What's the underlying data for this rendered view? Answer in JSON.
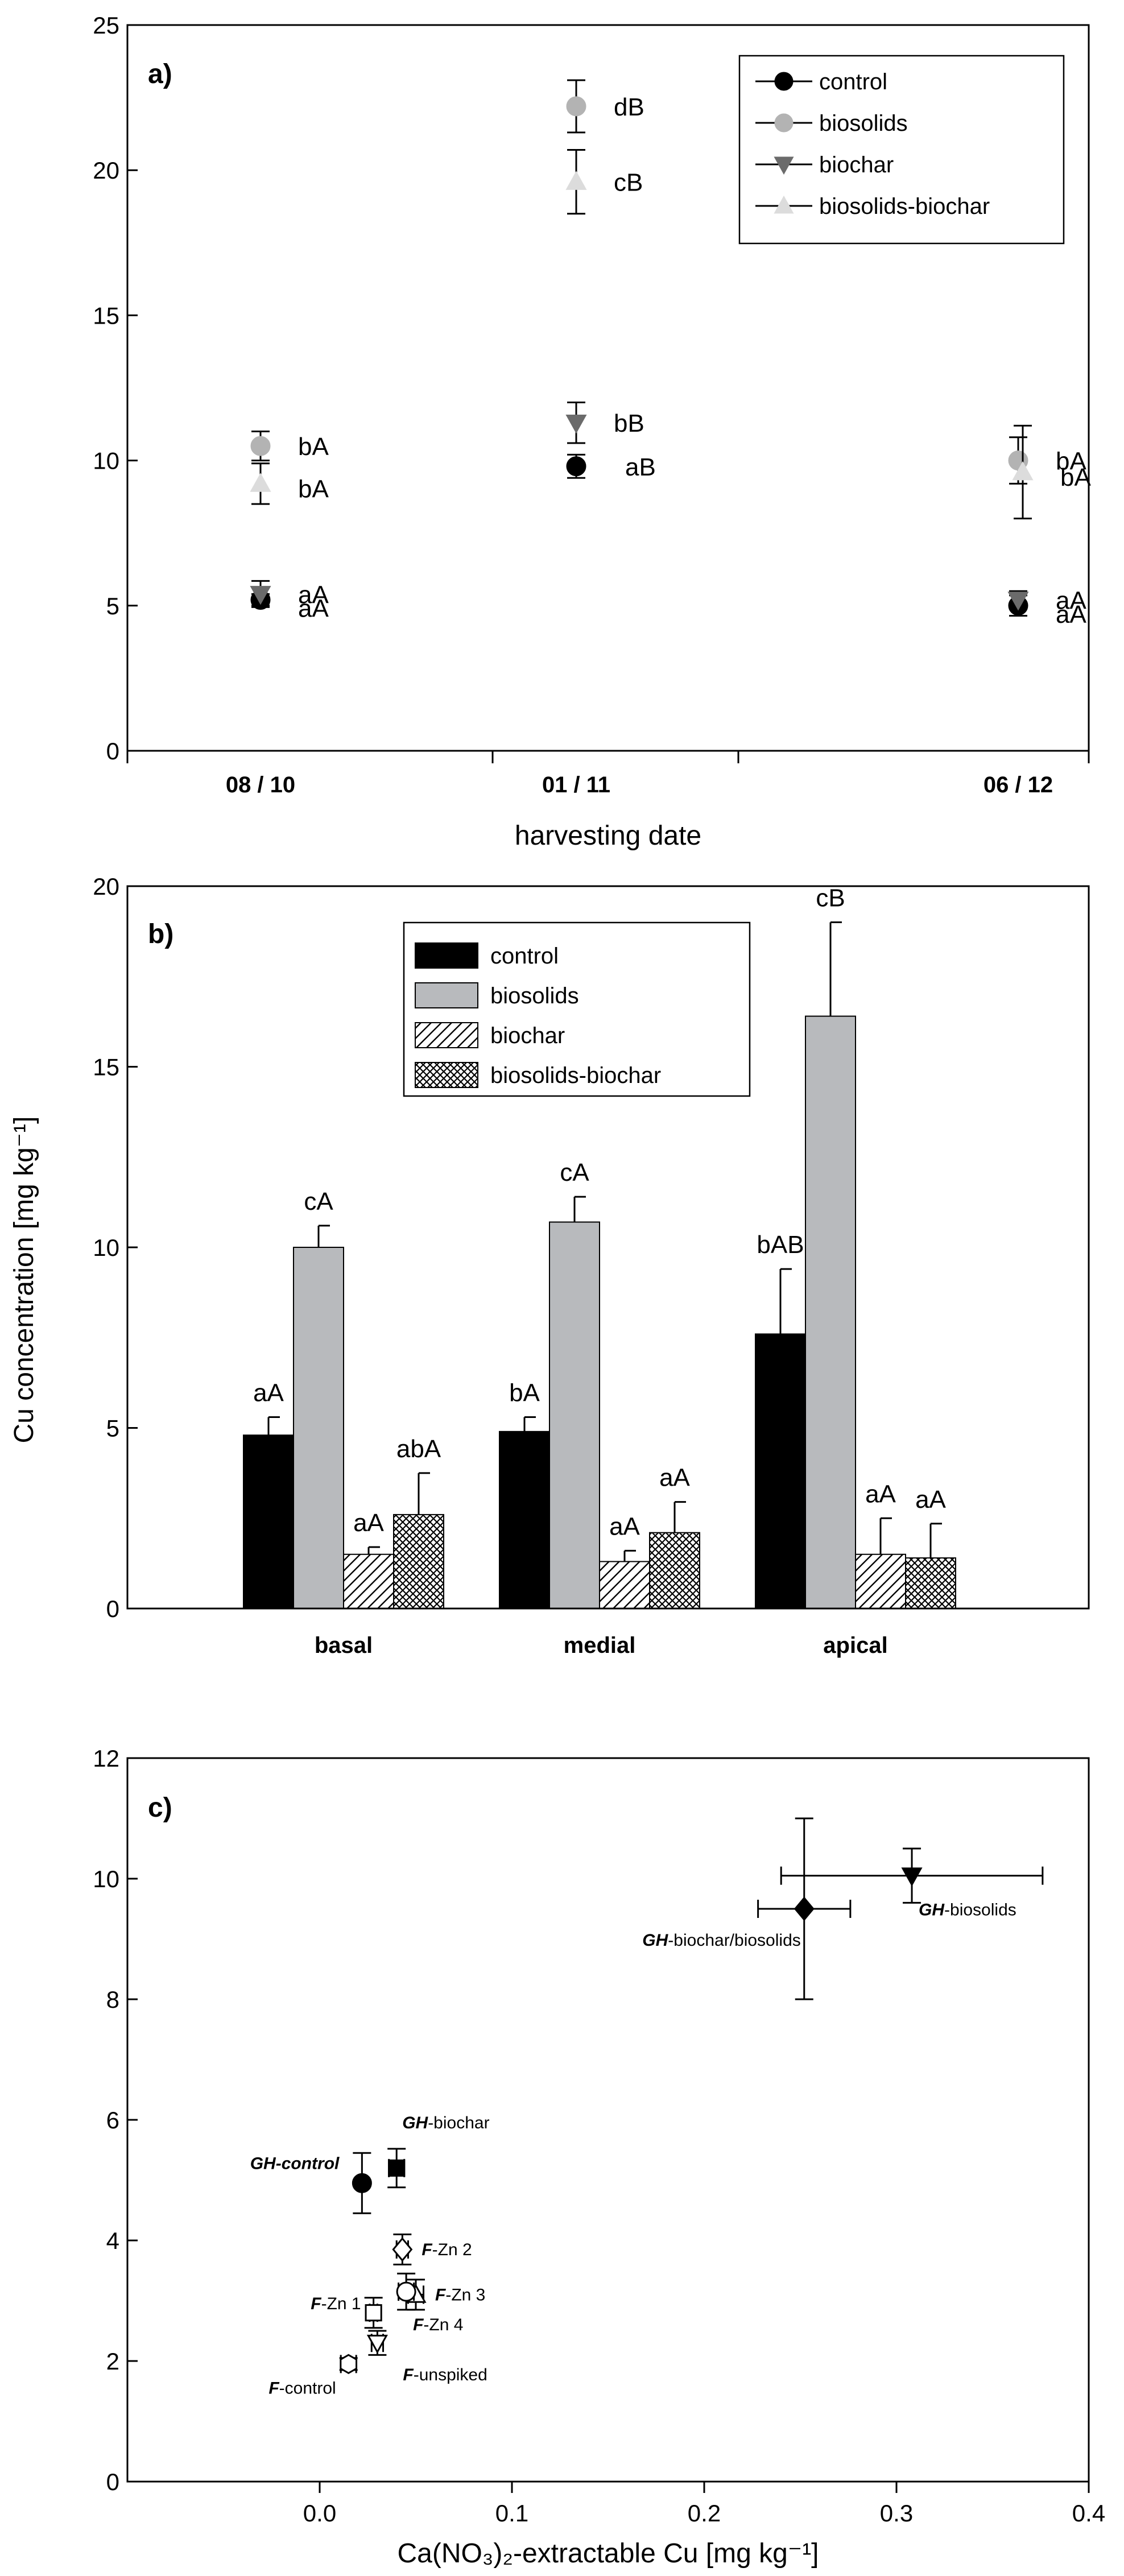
{
  "shared_ylabel": "Cu concentration [mg kg⁻¹]",
  "colors": {
    "control": "#000000",
    "biosolids_point": "#b3b3b3",
    "biosolids_bar": "#b8babd",
    "biochar_point": "#6b6b6b",
    "biosolids_biochar_point": "#dcdcdc",
    "axis": "#000000"
  },
  "chart_data": [
    {
      "type": "scatter",
      "panel_label": "a)",
      "xlabel": "harvesting date",
      "ylabel": "Cu concentration [mg kg⁻¹]",
      "categories": [
        "08 / 10",
        "01 / 11",
        "06 / 12"
      ],
      "ylim": [
        0,
        25
      ],
      "yticks": [
        0,
        5,
        10,
        15,
        20,
        25
      ],
      "legend_position": "top-right",
      "series": [
        {
          "name": "control",
          "marker": "circle",
          "values": [
            5.2,
            9.8,
            5.0
          ],
          "errors": [
            0.2,
            0.4,
            0.35
          ],
          "letters": [
            "aA",
            "aB",
            "aA"
          ]
        },
        {
          "name": "biosolids",
          "marker": "circle",
          "values": [
            10.5,
            22.2,
            10.0
          ],
          "errors": [
            0.5,
            0.9,
            0.8
          ],
          "letters": [
            "bA",
            "dB",
            "bA"
          ]
        },
        {
          "name": "biochar",
          "marker": "triangle-down",
          "values": [
            5.4,
            11.3,
            5.2
          ],
          "errors": [
            0.45,
            0.7,
            0.3
          ],
          "letters": [
            "aA",
            "bB",
            "aA"
          ]
        },
        {
          "name": "biosolids-biochar",
          "marker": "triangle-up",
          "values": [
            9.2,
            19.6,
            9.6
          ],
          "errors": [
            0.7,
            1.1,
            1.6
          ],
          "letters": [
            "bA",
            "cB",
            "bA"
          ]
        }
      ]
    },
    {
      "type": "bar",
      "panel_label": "b)",
      "xlabel": "",
      "ylabel": "Cu concentration [mg kg⁻¹]",
      "categories": [
        "basal",
        "medial",
        "apical"
      ],
      "ylim": [
        0,
        20
      ],
      "yticks": [
        0,
        5,
        10,
        15,
        20
      ],
      "legend_position": "top-center",
      "series": [
        {
          "name": "control",
          "fill": "solid-black",
          "values": [
            4.8,
            4.9,
            7.6
          ],
          "errors": [
            0.5,
            0.4,
            1.8
          ],
          "letters": [
            "aA",
            "bA",
            "bAB"
          ]
        },
        {
          "name": "biosolids",
          "fill": "solid-grey",
          "values": [
            10.0,
            10.7,
            16.4
          ],
          "errors": [
            0.6,
            0.7,
            2.6
          ],
          "letters": [
            "cA",
            "cA",
            "cB"
          ]
        },
        {
          "name": "biochar",
          "fill": "diagonal-hatch",
          "values": [
            1.5,
            1.3,
            1.5
          ],
          "errors": [
            0.2,
            0.3,
            1.0
          ],
          "letters": [
            "aA",
            "aA",
            "aA"
          ]
        },
        {
          "name": "biosolids-biochar",
          "fill": "crosshatch",
          "values": [
            2.6,
            2.1,
            1.4
          ],
          "errors": [
            1.15,
            0.85,
            0.95
          ],
          "letters": [
            "abA",
            "aA",
            "aA"
          ]
        }
      ]
    },
    {
      "type": "scatter",
      "panel_label": "c)",
      "xlabel": "Ca(NO₃)₂-extractable Cu [mg kg⁻¹]",
      "ylabel": "Cu concentration [mg kg⁻¹]",
      "xlim": [
        -0.1,
        0.4
      ],
      "ylim": [
        0,
        12
      ],
      "xticks": [
        0.0,
        0.1,
        0.2,
        0.3,
        0.4
      ],
      "xtick_labels": [
        "0.0",
        "0.1",
        "0.2",
        "0.3",
        "0.4"
      ],
      "yticks": [
        0,
        2,
        4,
        6,
        8,
        10,
        12
      ],
      "points": [
        {
          "prefix": "GH",
          "suffix": "-biosolids",
          "marker": "triangle-down-filled",
          "x": 0.308,
          "y": 10.05,
          "xerr": 0.068,
          "yerr": 0.45,
          "label_anchor": "below-right"
        },
        {
          "prefix": "GH",
          "suffix": "-biochar/biosolids",
          "marker": "diamond-filled",
          "x": 0.252,
          "y": 9.5,
          "xerr": 0.024,
          "yerr": 1.5,
          "label_anchor": "left"
        },
        {
          "prefix": "GH",
          "suffix": "-control",
          "marker": "circle-filled",
          "x": 0.022,
          "y": 4.95,
          "xerr": 0.0,
          "yerr": 0.5,
          "label_anchor": "left"
        },
        {
          "prefix": "GH",
          "suffix": "-biochar",
          "marker": "square-filled",
          "x": 0.04,
          "y": 5.2,
          "xerr": 0.004,
          "yerr": 0.32,
          "label_anchor": "above-right"
        },
        {
          "prefix": "F",
          "suffix": "-Zn 2",
          "marker": "diamond-open",
          "x": 0.043,
          "y": 3.85,
          "xerr": 0.003,
          "yerr": 0.25,
          "label_anchor": "right"
        },
        {
          "prefix": "F",
          "suffix": "-Zn 3",
          "marker": "triangle-up-open",
          "x": 0.05,
          "y": 3.1,
          "xerr": 0.004,
          "yerr": 0.25,
          "label_anchor": "right"
        },
        {
          "prefix": "F",
          "suffix": "-Zn 4",
          "marker": "circle-open",
          "x": 0.045,
          "y": 3.15,
          "xerr": 0.004,
          "yerr": 0.3,
          "label_anchor": "below-right"
        },
        {
          "prefix": "F",
          "suffix": "-Zn 1",
          "marker": "square-open",
          "x": 0.028,
          "y": 2.8,
          "xerr": 0.002,
          "yerr": 0.25,
          "label_anchor": "left"
        },
        {
          "prefix": "F",
          "suffix": "-unspiked",
          "marker": "triangle-down-open",
          "x": 0.03,
          "y": 2.3,
          "xerr": 0.003,
          "yerr": 0.2,
          "label_anchor": "below-right"
        },
        {
          "prefix": "F",
          "suffix": "-control",
          "marker": "hexagon-open",
          "x": 0.015,
          "y": 1.95,
          "xerr": 0.004,
          "yerr": 0.1,
          "label_anchor": "below-left"
        }
      ]
    }
  ]
}
